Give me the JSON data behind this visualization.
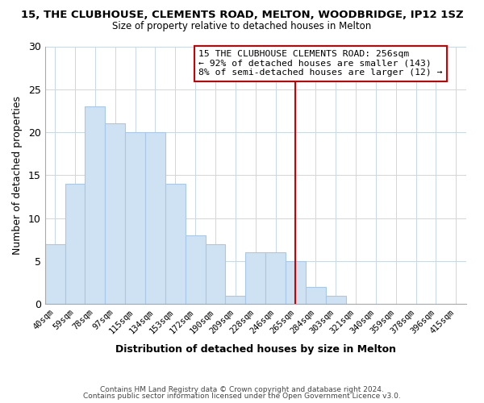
{
  "title": "15, THE CLUBHOUSE, CLEMENTS ROAD, MELTON, WOODBRIDGE, IP12 1SZ",
  "subtitle": "Size of property relative to detached houses in Melton",
  "xlabel": "Distribution of detached houses by size in Melton",
  "ylabel": "Number of detached properties",
  "bar_labels": [
    "40sqm",
    "59sqm",
    "78sqm",
    "97sqm",
    "115sqm",
    "134sqm",
    "153sqm",
    "172sqm",
    "190sqm",
    "209sqm",
    "228sqm",
    "246sqm",
    "265sqm",
    "284sqm",
    "303sqm",
    "321sqm",
    "340sqm",
    "359sqm",
    "378sqm",
    "396sqm",
    "415sqm"
  ],
  "bar_values": [
    7,
    14,
    23,
    21,
    20,
    20,
    14,
    8,
    7,
    1,
    6,
    6,
    5,
    2,
    1,
    0,
    0,
    0,
    0,
    0,
    0
  ],
  "bar_color": "#cfe2f3",
  "bar_edge_color": "#a8c8e8",
  "vline_color": "#cc0000",
  "annotation_title": "15 THE CLUBHOUSE CLEMENTS ROAD: 256sqm",
  "annotation_line1": "← 92% of detached houses are smaller (143)",
  "annotation_line2": "8% of semi-detached houses are larger (12) →",
  "ylim": [
    0,
    30
  ],
  "yticks": [
    0,
    5,
    10,
    15,
    20,
    25,
    30
  ],
  "footer1": "Contains HM Land Registry data © Crown copyright and database right 2024.",
  "footer2": "Contains public sector information licensed under the Open Government Licence v3.0.",
  "bg_color": "#ffffff",
  "grid_color": "#c8d8e8",
  "ann_box_color": "#ffffff",
  "ann_box_edge": "#cc0000"
}
